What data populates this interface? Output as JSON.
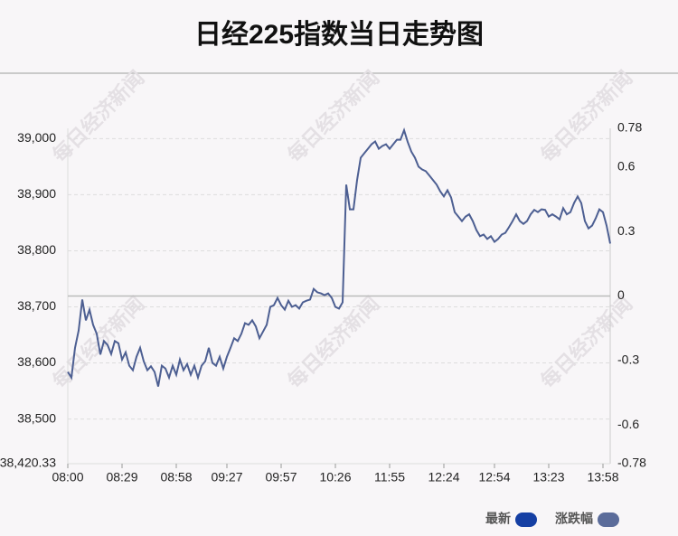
{
  "chart_data": {
    "type": "line",
    "title": "日经225指数当日走势图",
    "watermark": "每日经济新闻",
    "categories": [
      "08:00",
      null,
      null,
      null,
      null,
      null,
      null,
      null,
      null,
      null,
      null,
      null,
      null,
      null,
      null,
      "08:29",
      null,
      null,
      null,
      null,
      null,
      null,
      null,
      null,
      null,
      null,
      null,
      null,
      null,
      null,
      "08:58",
      null,
      null,
      null,
      null,
      null,
      null,
      null,
      null,
      null,
      null,
      null,
      null,
      null,
      "09:27",
      null,
      null,
      null,
      null,
      null,
      null,
      null,
      null,
      null,
      null,
      null,
      null,
      null,
      null,
      "09:57",
      null,
      null,
      null,
      null,
      null,
      null,
      null,
      null,
      null,
      null,
      null,
      null,
      null,
      null,
      "10:26",
      null,
      null,
      null,
      null,
      null,
      null,
      null,
      null,
      null,
      null,
      null,
      null,
      null,
      null,
      "11:55",
      null,
      null,
      null,
      null,
      null,
      null,
      null,
      null,
      null,
      null,
      null,
      null,
      null,
      null,
      "12:24",
      null,
      null,
      null,
      null,
      null,
      null,
      null,
      null,
      null,
      null,
      null,
      null,
      null,
      "12:54",
      null,
      null,
      null,
      null,
      null,
      null,
      null,
      null,
      null,
      null,
      null,
      null,
      null,
      null,
      "13:23",
      null,
      null,
      null,
      null,
      null,
      null,
      null,
      null,
      null,
      null,
      null,
      null,
      null,
      null,
      "13:58",
      null,
      null
    ],
    "series": [
      {
        "name": "最新",
        "color": "#153fa3",
        "values": [
          38584,
          38574,
          38627,
          38658,
          38713,
          38676,
          38695,
          38668,
          38652,
          38615,
          38639,
          38632,
          38616,
          38639,
          38635,
          38606,
          38619,
          38595,
          38587,
          38611,
          38627,
          38603,
          38587,
          38594,
          38584,
          38558,
          38595,
          38590,
          38574,
          38595,
          38579,
          38606,
          38587,
          38598,
          38579,
          38595,
          38574,
          38595,
          38603,
          38627,
          38600,
          38595,
          38611,
          38590,
          38611,
          38627,
          38644,
          38639,
          38652,
          38671,
          38668,
          38676,
          38665,
          38644,
          38656,
          38668,
          38700,
          38703,
          38716,
          38703,
          38695,
          38711,
          38700,
          38703,
          38697,
          38708,
          38711,
          38713,
          38732,
          38726,
          38724,
          38721,
          38724,
          38716,
          38700,
          38697,
          38708,
          38918,
          38874,
          38874,
          38926,
          38966,
          38974,
          38982,
          38990,
          38995,
          38982,
          38987,
          38990,
          38982,
          38990,
          38998,
          38998,
          39015,
          38994,
          38977,
          38966,
          38950,
          38945,
          38942,
          38934,
          38926,
          38918,
          38906,
          38897,
          38908,
          38895,
          38869,
          38861,
          38853,
          38861,
          38865,
          38853,
          38837,
          38826,
          38829,
          38821,
          38826,
          38816,
          38821,
          38829,
          38832,
          38842,
          38853,
          38865,
          38853,
          38848,
          38853,
          38865,
          38873,
          38869,
          38874,
          38873,
          38861,
          38865,
          38861,
          38856,
          38876,
          38865,
          38869,
          38885,
          38897,
          38885,
          38853,
          38840,
          38845,
          38858,
          38874,
          38869,
          38845,
          38813
        ]
      }
    ],
    "y2_legend": {
      "name": "涨跌幅",
      "color": "#5b6c9a"
    },
    "line_color": "#4d5f92",
    "ylim": [
      38420.33,
      39018.37
    ],
    "yticks": [
      {
        "value": 38420.33,
        "label": "38,420.33"
      },
      {
        "value": 38500,
        "label": "38,500"
      },
      {
        "value": 38600,
        "label": "38,600"
      },
      {
        "value": 38700,
        "label": "38,700"
      },
      {
        "value": 38800,
        "label": "38,800"
      },
      {
        "value": 38900,
        "label": "38,900"
      },
      {
        "value": 39000,
        "label": "39,000"
      }
    ],
    "y2lim": [
      -0.78,
      0.78
    ],
    "y2ticks": [
      -0.78,
      -0.6,
      -0.3,
      0,
      0.3,
      0.6,
      0.78
    ],
    "grid": true
  }
}
